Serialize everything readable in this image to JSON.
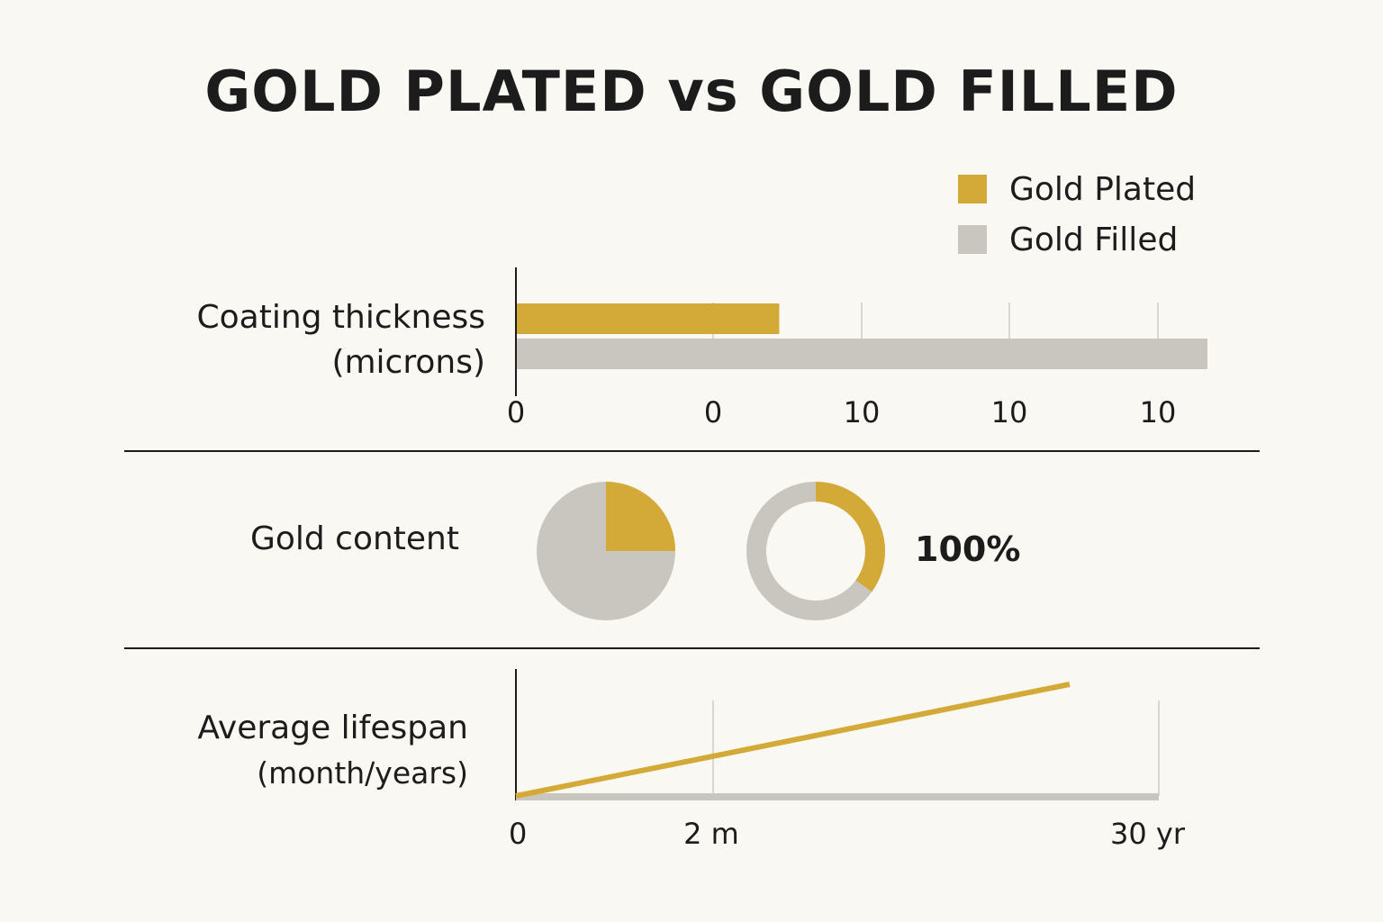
{
  "title": "GOLD PLATED vs GOLD FILLED",
  "colors": {
    "gold": "#d3aa37",
    "gray": "#c9c6bf",
    "axis": "#1c1c1c",
    "grid": "#d9d7d1",
    "background": "#faf8f3"
  },
  "legend": [
    {
      "label": "Gold Plated",
      "color": "#d3aa37"
    },
    {
      "label": "Gold Filled",
      "color": "#c9c6bf"
    }
  ],
  "chart_data": [
    {
      "type": "bar",
      "orientation": "horizontal",
      "label_line1": "Coating thickness",
      "label_line2": "(microns)",
      "tick_labels": [
        "0",
        "0",
        "10",
        "10",
        "10"
      ],
      "series": [
        {
          "name": "Gold Plated",
          "value_fraction": 0.38
        },
        {
          "name": "Gold Filled",
          "value_fraction": 1.0
        }
      ],
      "grid": true
    },
    {
      "type": "pie",
      "label": "Gold content",
      "charts": [
        {
          "name": "Gold Plated",
          "style": "pie",
          "gold_fraction": 0.25
        },
        {
          "name": "Gold Filled",
          "style": "donut",
          "gold_fraction": 0.35
        }
      ],
      "annotation": "100%"
    },
    {
      "type": "line",
      "label_line1": "Average lifespan",
      "label_line2": "(month/years)",
      "tick_labels": [
        "0",
        "2 m",
        "30 yr"
      ],
      "series": [
        {
          "name": "Gold Plated",
          "start": 0,
          "end_fraction": 0.86,
          "end_level": 0.88
        },
        {
          "name": "Gold Filled",
          "start": 0,
          "end_fraction": 1.0,
          "end_level": 0.0
        }
      ],
      "grid": true
    }
  ]
}
